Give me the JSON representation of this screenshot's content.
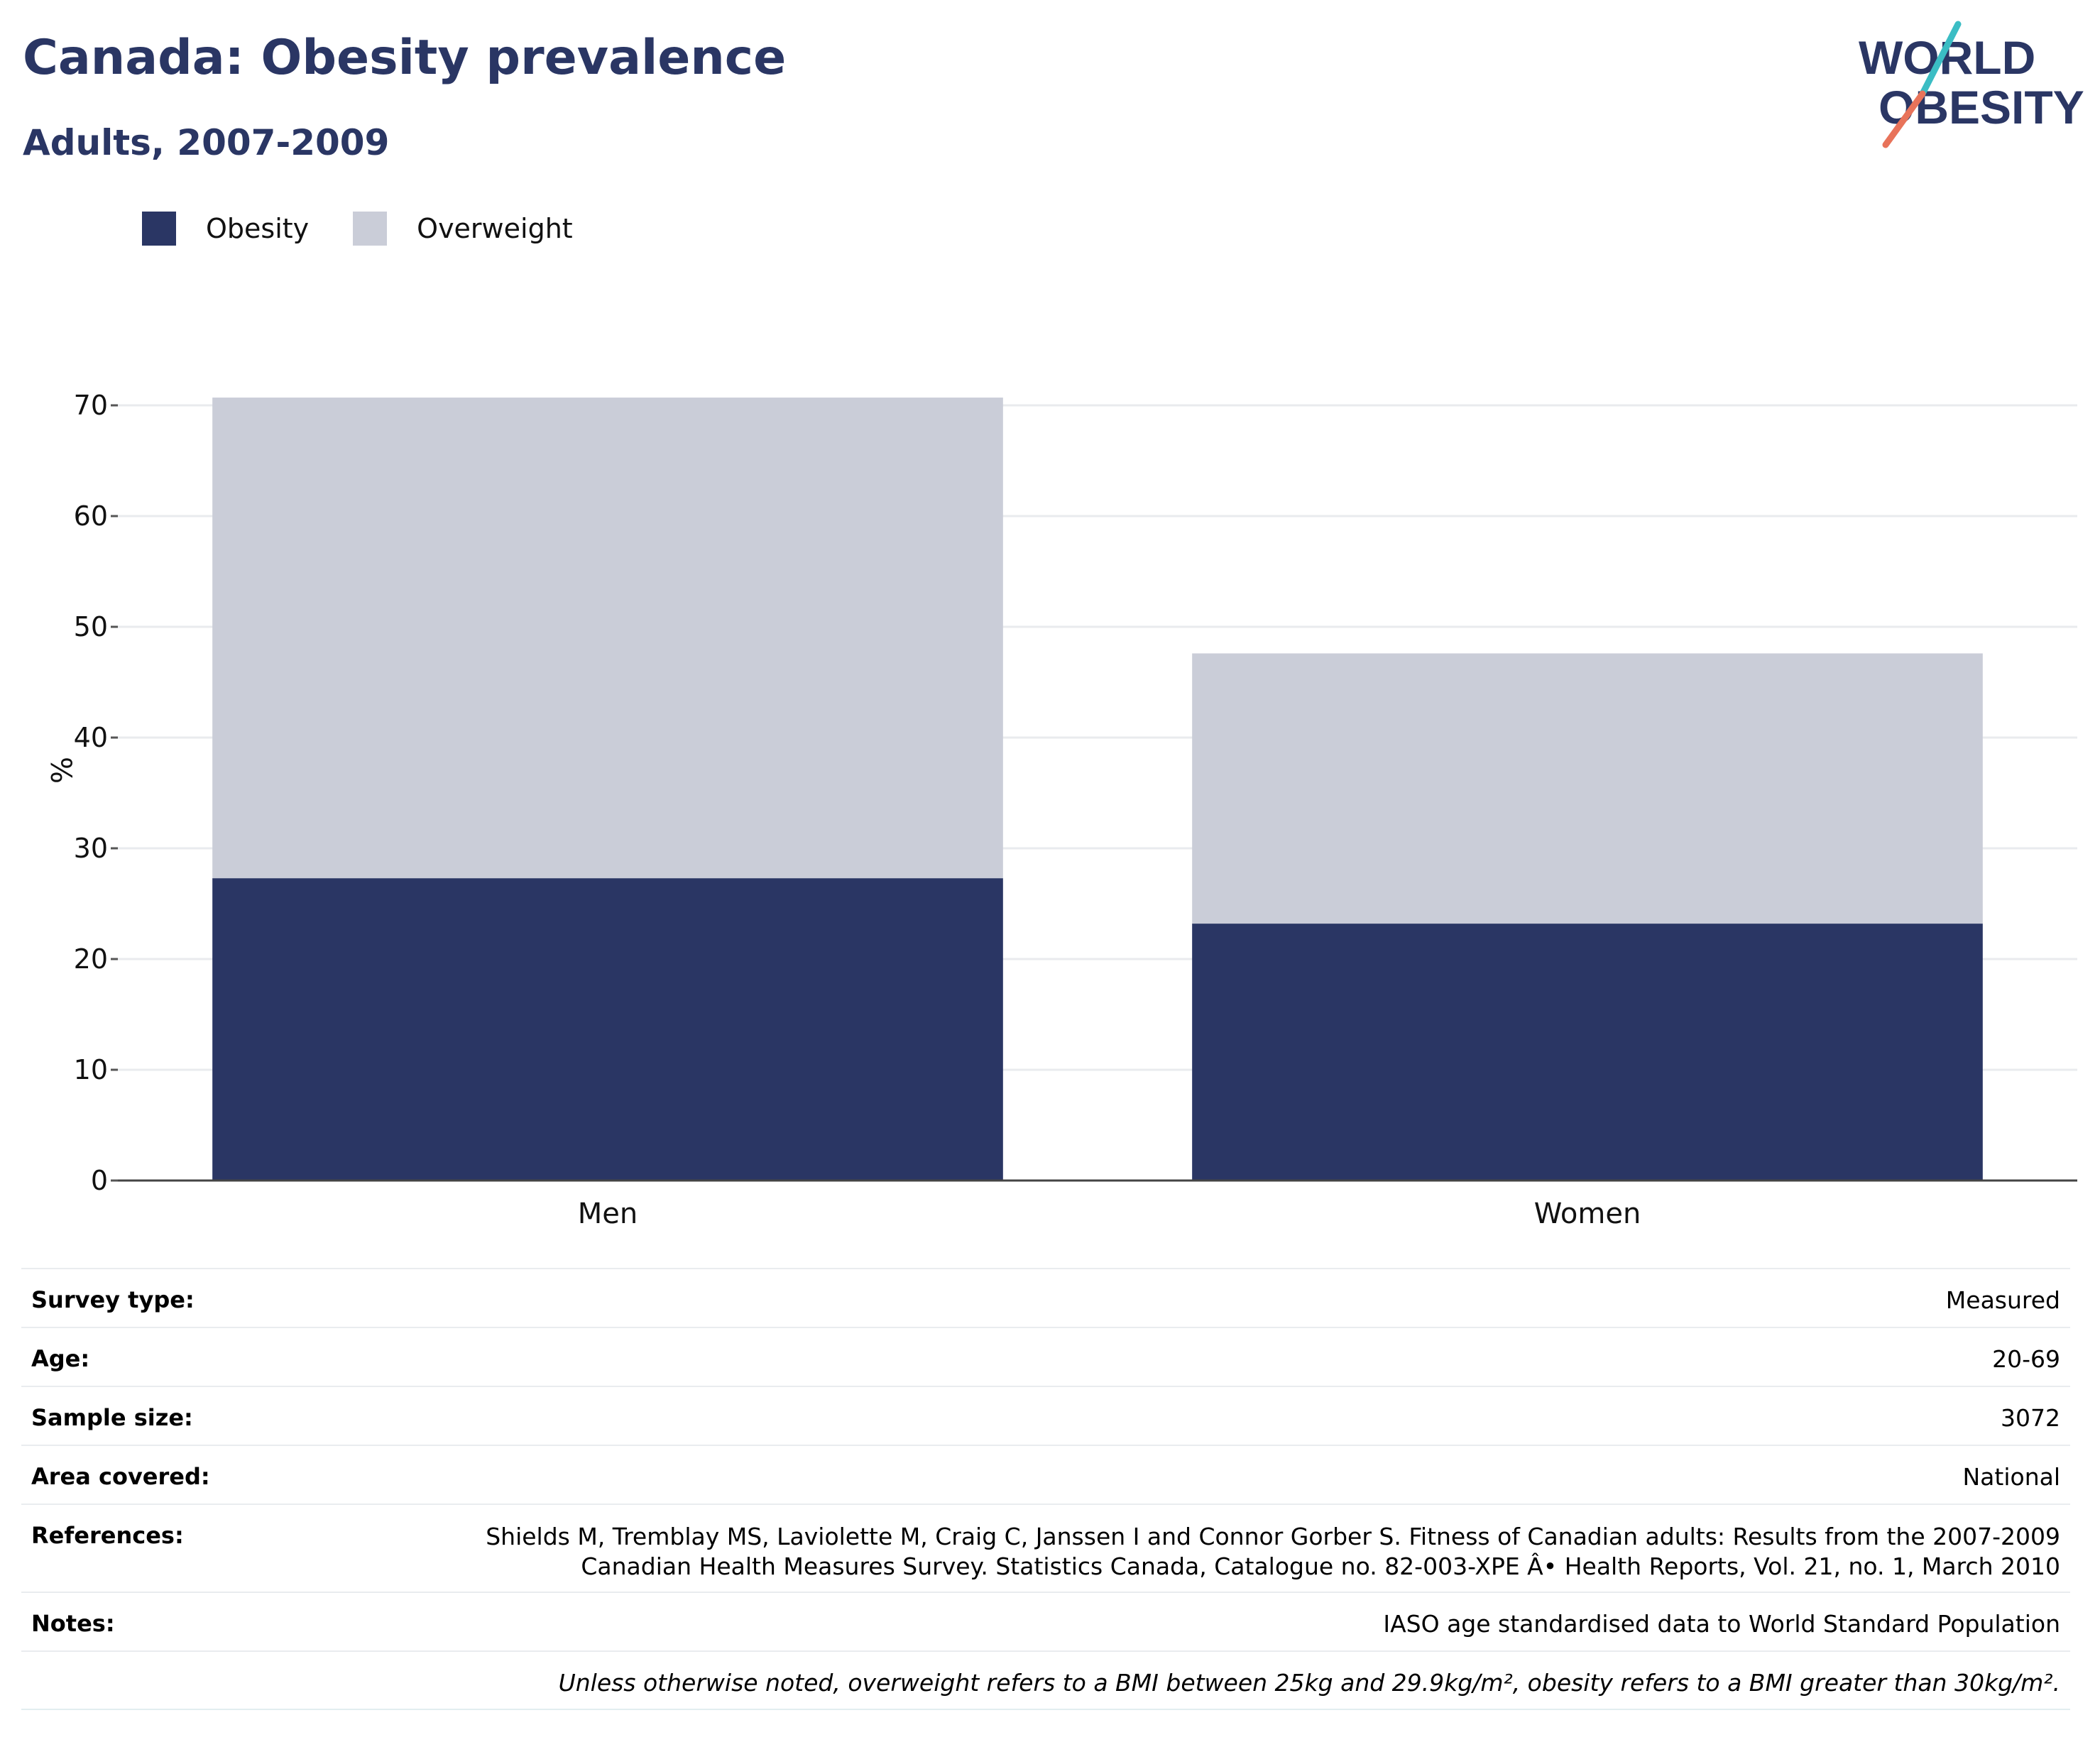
{
  "header": {
    "title": "Canada: Obesity prevalence",
    "subtitle": "Adults, 2007-2009"
  },
  "logo": {
    "line1": "WORLD",
    "line2": "OBESITY",
    "accent_colors": [
      "#3bbdc4",
      "#e8735a"
    ],
    "text_color": "#2a3664"
  },
  "legend": [
    {
      "label": "Obesity",
      "color": "#2a3664"
    },
    {
      "label": "Overweight",
      "color": "#cacdd8"
    }
  ],
  "chart_data": {
    "type": "bar",
    "stacked": true,
    "categories": [
      "Men",
      "Women"
    ],
    "series": [
      {
        "name": "Obesity",
        "color": "#2a3664",
        "values": [
          27.3,
          23.2
        ]
      },
      {
        "name": "Overweight",
        "color": "#cacdd8",
        "values": [
          43.4,
          24.4
        ]
      }
    ],
    "ylabel": "%",
    "ylim": [
      0,
      70
    ],
    "yticks": [
      "0",
      "10",
      "20",
      "30",
      "40",
      "50",
      "60",
      "70"
    ],
    "grid": true,
    "legend_position": "top-left"
  },
  "info": {
    "survey_type": {
      "label": "Survey type:",
      "value": "Measured"
    },
    "age": {
      "label": "Age:",
      "value": "20-69"
    },
    "sample_size": {
      "label": "Sample size:",
      "value": "3072"
    },
    "area": {
      "label": "Area covered:",
      "value": "National"
    },
    "references": {
      "label": "References:",
      "line1": "Shields M, Tremblay MS, Laviolette M, Craig C, Janssen I and Connor Gorber S. Fitness of Canadian adults: Results from the 2007-2009",
      "line2": "Canadian Health Measures Survey. Statistics Canada, Catalogue no. 82-003-XPE Â• Health Reports, Vol. 21, no. 1, March 2010"
    },
    "notes": {
      "label": "Notes:",
      "value": "IASO age standardised data to World Standard Population"
    },
    "footnote": "Unless otherwise noted, overweight refers to a BMI between 25kg and 29.9kg/m², obesity refers to a BMI greater than 30kg/m²."
  }
}
